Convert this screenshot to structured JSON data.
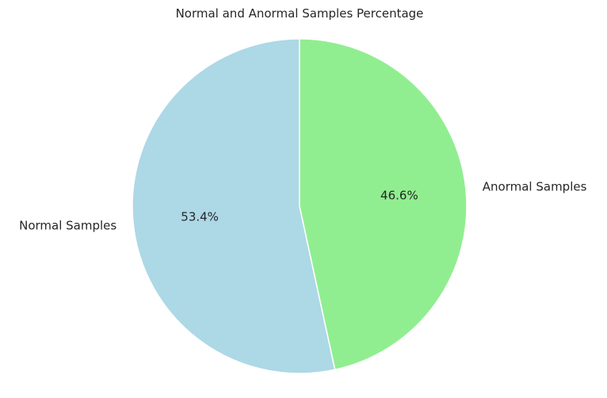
{
  "chart_data": {
    "type": "pie",
    "title": "Normal and Anormal Samples Percentage",
    "slices": [
      {
        "label": "Normal Samples",
        "value": 53.4,
        "pct_label": "53.4%",
        "color": "#add8e6"
      },
      {
        "label": "Anormal Samples",
        "value": 46.6,
        "pct_label": "46.6%",
        "color": "#90ee90"
      }
    ],
    "start_angle_deg": 90,
    "direction": "counterclockwise"
  }
}
